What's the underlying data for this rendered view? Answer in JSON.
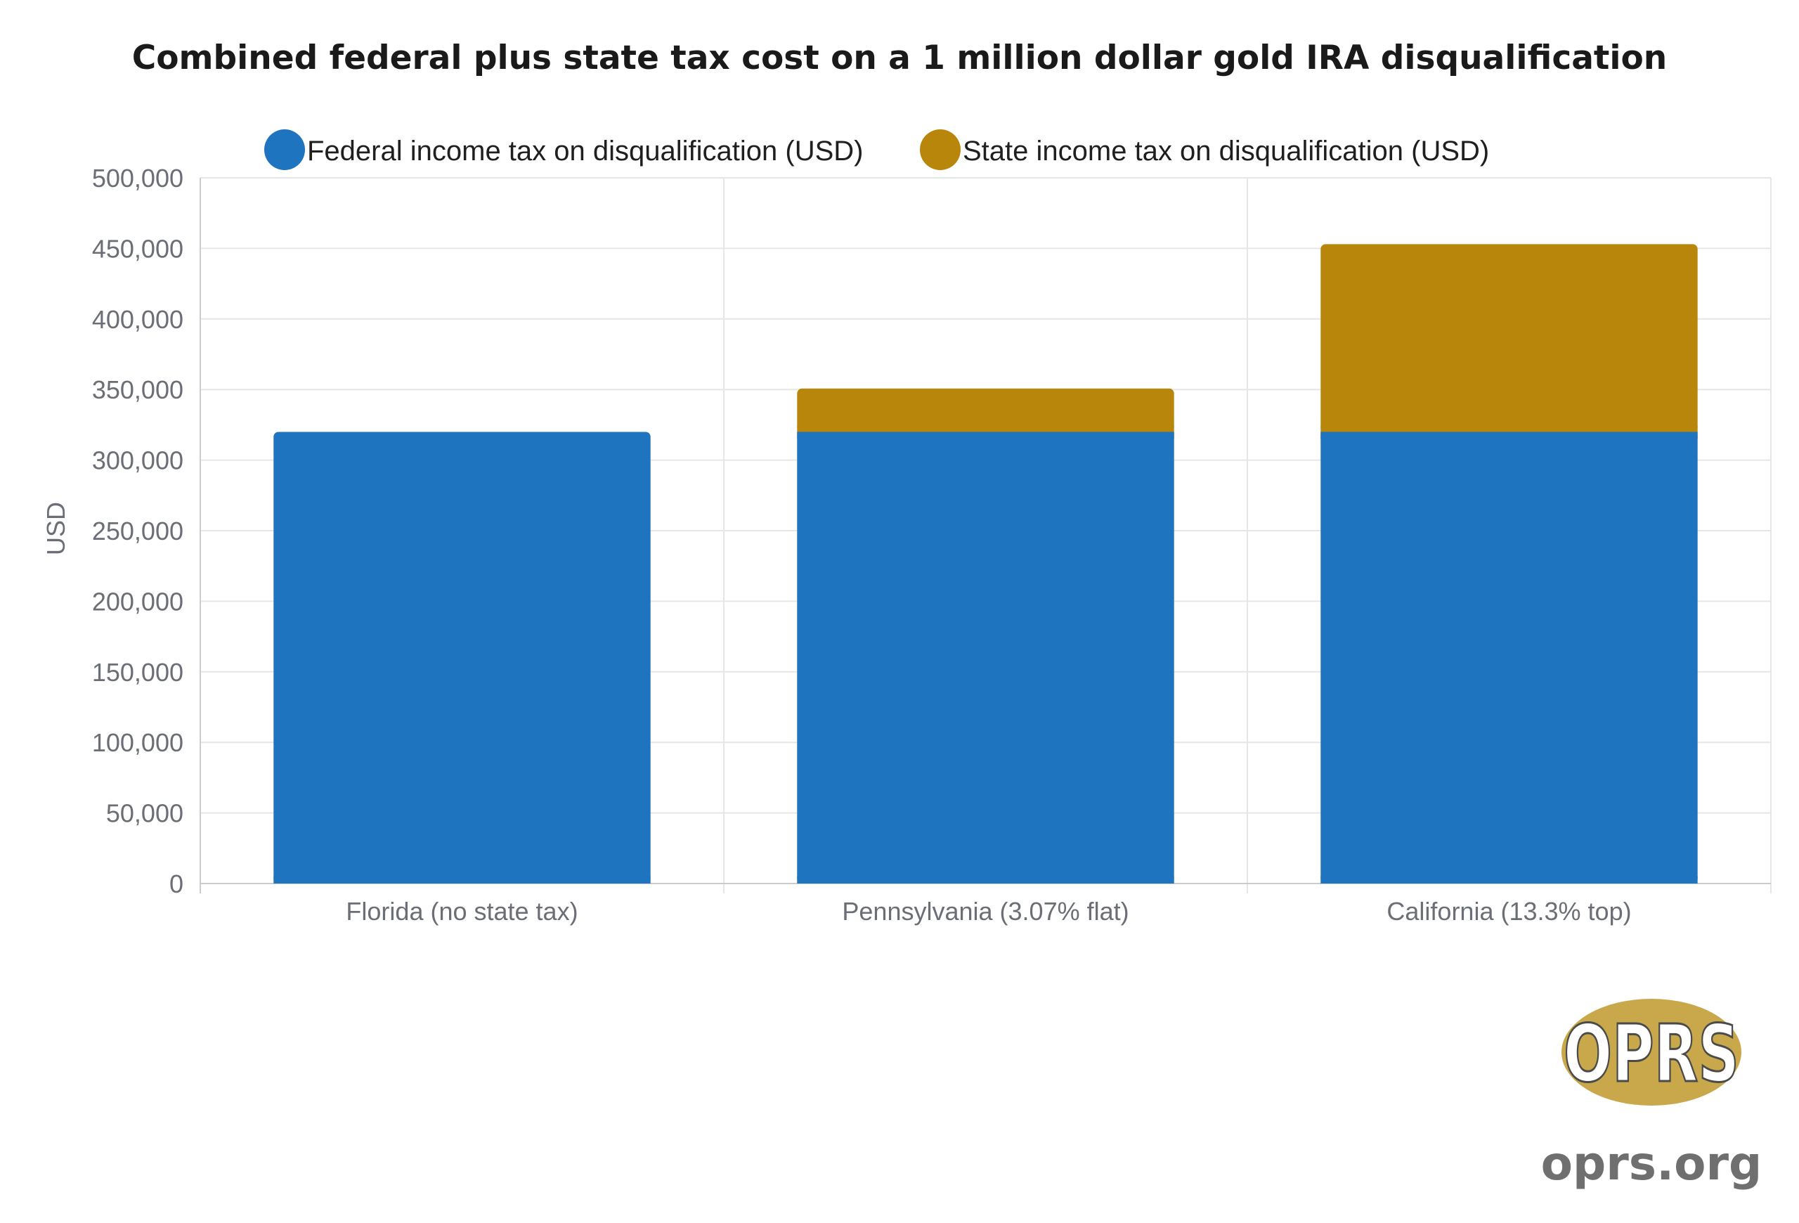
{
  "colors": {
    "federal": "#1f74c0",
    "state": "#b8860b",
    "grid": "#e6e6e6",
    "axis": "#cccccc",
    "tick_text": "#6b6e76",
    "logo_text": "#6f6f70",
    "logo_gold": "#c8a84a"
  },
  "chart_data": {
    "type": "bar",
    "stacked": true,
    "title": "Combined federal plus state tax cost on a 1 million dollar gold IRA disqualification",
    "xlabel": "",
    "ylabel": "USD",
    "ylim": [
      0,
      500000
    ],
    "yticks": [
      0,
      50000,
      100000,
      150000,
      200000,
      250000,
      300000,
      350000,
      400000,
      450000,
      500000
    ],
    "ytick_labels": [
      "0",
      "50,000",
      "100,000",
      "150,000",
      "200,000",
      "250,000",
      "300,000",
      "350,000",
      "400,000",
      "450,000",
      "500,000"
    ],
    "categories": [
      "Florida (no state tax)",
      "Pennsylvania (3.07% flat)",
      "California (13.3% top)"
    ],
    "series": [
      {
        "name": "Federal income tax on disqualification (USD)",
        "values": [
          320000,
          320000,
          320000
        ]
      },
      {
        "name": "State income tax on disqualification (USD)",
        "values": [
          0,
          30700,
          133000
        ]
      }
    ],
    "legend_position": "top-center",
    "grid": true
  },
  "logo": {
    "mark": "OPRS",
    "url_text": "oprs.org"
  }
}
